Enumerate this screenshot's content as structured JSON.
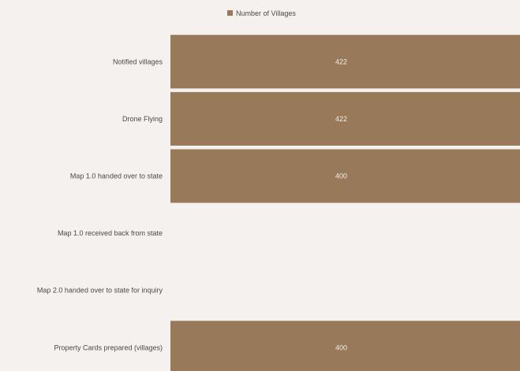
{
  "chart_data": {
    "type": "bar",
    "orientation": "horizontal",
    "legend": {
      "position": "top-center"
    },
    "categories": [
      "Notified villages",
      "Drone Flying",
      "Map 1.0 handed over to state",
      "Map 1.0 received back from state",
      "Map 2.0 handed over to state for inquiry",
      "Property Cards prepared (villages)"
    ],
    "series": [
      {
        "name": "Number of Villages",
        "color": "#98795a",
        "values": [
          422,
          422,
          400,
          null,
          null,
          400
        ],
        "value_labels": [
          "422",
          "422",
          "400",
          "",
          "",
          "400"
        ]
      }
    ],
    "xlim": [
      0,
      422
    ],
    "grid": false
  }
}
